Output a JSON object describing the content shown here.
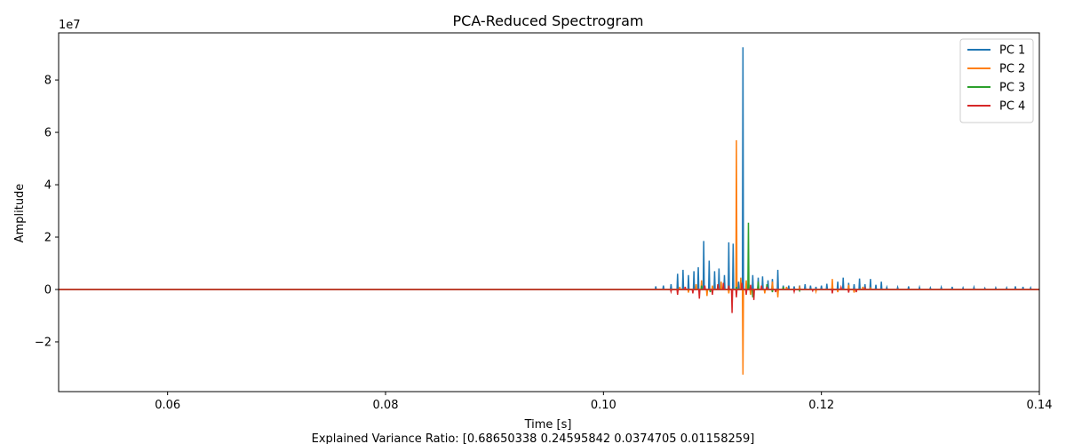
{
  "chart_data": {
    "type": "line",
    "title": "PCA-Reduced Spectrogram",
    "xlabel": "Time [s]",
    "ylabel": "Amplitude",
    "y_scale_label": "1e7",
    "footer_text": "Explained Variance Ratio: [0.68650338 0.24595842 0.0374705  0.01158259]",
    "xlim": [
      0.05,
      0.14
    ],
    "ylim": [
      -3.9,
      9.8
    ],
    "y_multiplier": 10000000,
    "x_ticks": [
      {
        "value": 0.06,
        "label": "0.06"
      },
      {
        "value": 0.08,
        "label": "0.08"
      },
      {
        "value": 0.1,
        "label": "0.10"
      },
      {
        "value": 0.12,
        "label": "0.12"
      },
      {
        "value": 0.14,
        "label": "0.14"
      }
    ],
    "y_ticks": [
      {
        "value": -2,
        "label": "−2"
      },
      {
        "value": 0,
        "label": "0"
      },
      {
        "value": 2,
        "label": "2"
      },
      {
        "value": 4,
        "label": "4"
      },
      {
        "value": 6,
        "label": "6"
      },
      {
        "value": 8,
        "label": "8"
      }
    ],
    "grid": false,
    "legend_position": "upper right",
    "series": [
      {
        "name": "PC 1",
        "color": "#1f77b4",
        "spikes": [
          [
            0.1048,
            0.12
          ],
          [
            0.1055,
            0.15
          ],
          [
            0.1062,
            0.2
          ],
          [
            0.1068,
            0.6
          ],
          [
            0.1073,
            0.75
          ],
          [
            0.1078,
            0.55
          ],
          [
            0.1083,
            0.7
          ],
          [
            0.1087,
            0.85
          ],
          [
            0.1092,
            1.85
          ],
          [
            0.1097,
            1.1
          ],
          [
            0.1102,
            0.7
          ],
          [
            0.1106,
            0.8
          ],
          [
            0.1111,
            0.55
          ],
          [
            0.1115,
            1.8
          ],
          [
            0.1119,
            1.75
          ],
          [
            0.1124,
            0.3
          ],
          [
            0.1128,
            9.25
          ],
          [
            0.1133,
            0.4
          ],
          [
            0.1137,
            0.55
          ],
          [
            0.1142,
            0.45
          ],
          [
            0.1146,
            0.5
          ],
          [
            0.1151,
            0.35
          ],
          [
            0.1155,
            0.4
          ],
          [
            0.116,
            0.75
          ],
          [
            0.1165,
            0.15
          ],
          [
            0.117,
            0.15
          ],
          [
            0.1175,
            0.12
          ],
          [
            0.118,
            0.15
          ],
          [
            0.1185,
            0.2
          ],
          [
            0.119,
            0.15
          ],
          [
            0.1195,
            0.1
          ],
          [
            0.12,
            0.15
          ],
          [
            0.1205,
            0.22
          ],
          [
            0.121,
            0.15
          ],
          [
            0.1215,
            0.3
          ],
          [
            0.122,
            0.45
          ],
          [
            0.1225,
            0.25
          ],
          [
            0.123,
            0.2
          ],
          [
            0.1235,
            0.42
          ],
          [
            0.124,
            0.2
          ],
          [
            0.1245,
            0.4
          ],
          [
            0.125,
            0.18
          ],
          [
            0.1255,
            0.3
          ],
          [
            0.126,
            0.08
          ],
          [
            0.127,
            0.08
          ],
          [
            0.128,
            0.12
          ],
          [
            0.129,
            0.08
          ],
          [
            0.13,
            0.06
          ],
          [
            0.131,
            0.08
          ],
          [
            0.132,
            0.1
          ],
          [
            0.133,
            0.06
          ],
          [
            0.134,
            0.08
          ],
          [
            0.135,
            0.05
          ],
          [
            0.136,
            0.06
          ],
          [
            0.137,
            0.06
          ],
          [
            0.1378,
            0.12
          ],
          [
            0.1385,
            0.1
          ],
          [
            0.1392,
            0.06
          ]
        ]
      },
      {
        "name": "PC 2",
        "color": "#ff7f0e",
        "spikes": [
          [
            0.107,
            0.1
          ],
          [
            0.1078,
            -0.12
          ],
          [
            0.1085,
            0.2
          ],
          [
            0.109,
            0.35
          ],
          [
            0.1095,
            -0.25
          ],
          [
            0.11,
            0.15
          ],
          [
            0.1108,
            0.3
          ],
          [
            0.1115,
            -0.15
          ],
          [
            0.1122,
            5.7
          ],
          [
            0.1126,
            0.45
          ],
          [
            0.1128,
            -3.25
          ],
          [
            0.1131,
            0.35
          ],
          [
            0.1135,
            -0.2
          ],
          [
            0.1142,
            0.2
          ],
          [
            0.1148,
            -0.15
          ],
          [
            0.1155,
            0.3
          ],
          [
            0.116,
            -0.3
          ],
          [
            0.1168,
            0.1
          ],
          [
            0.118,
            0.08
          ],
          [
            0.1195,
            -0.08
          ],
          [
            0.121,
            0.4
          ],
          [
            0.1215,
            -0.1
          ],
          [
            0.1225,
            0.18
          ],
          [
            0.123,
            -0.12
          ],
          [
            0.1238,
            0.1
          ],
          [
            0.1245,
            0.05
          ]
        ]
      },
      {
        "name": "PC 3",
        "color": "#2ca02c",
        "spikes": [
          [
            0.109,
            0.15
          ],
          [
            0.1098,
            -0.1
          ],
          [
            0.1105,
            0.2
          ],
          [
            0.1115,
            0.15
          ],
          [
            0.1122,
            0.1
          ],
          [
            0.1133,
            2.55
          ],
          [
            0.1137,
            -0.3
          ],
          [
            0.1142,
            0.3
          ],
          [
            0.115,
            0.2
          ],
          [
            0.1155,
            -0.1
          ],
          [
            0.1165,
            0.1
          ],
          [
            0.118,
            -0.05
          ]
        ]
      },
      {
        "name": "PC 4",
        "color": "#d62728",
        "spikes": [
          [
            0.1062,
            -0.08
          ],
          [
            0.1068,
            -0.2
          ],
          [
            0.1075,
            0.1
          ],
          [
            0.1082,
            -0.15
          ],
          [
            0.1088,
            -0.35
          ],
          [
            0.1093,
            0.15
          ],
          [
            0.11,
            -0.2
          ],
          [
            0.1105,
            0.2
          ],
          [
            0.111,
            0.25
          ],
          [
            0.1115,
            0.15
          ],
          [
            0.1118,
            -0.9
          ],
          [
            0.1122,
            -0.3
          ],
          [
            0.1127,
            0.25
          ],
          [
            0.1131,
            -0.2
          ],
          [
            0.1135,
            0.18
          ],
          [
            0.1138,
            -0.4
          ],
          [
            0.1145,
            0.15
          ],
          [
            0.115,
            0.1
          ],
          [
            0.1158,
            -0.1
          ],
          [
            0.1175,
            -0.08
          ],
          [
            0.1192,
            -0.05
          ],
          [
            0.121,
            -0.15
          ],
          [
            0.1218,
            0.08
          ],
          [
            0.1225,
            -0.12
          ],
          [
            0.1232,
            -0.1
          ],
          [
            0.124,
            0.05
          ]
        ]
      }
    ]
  }
}
